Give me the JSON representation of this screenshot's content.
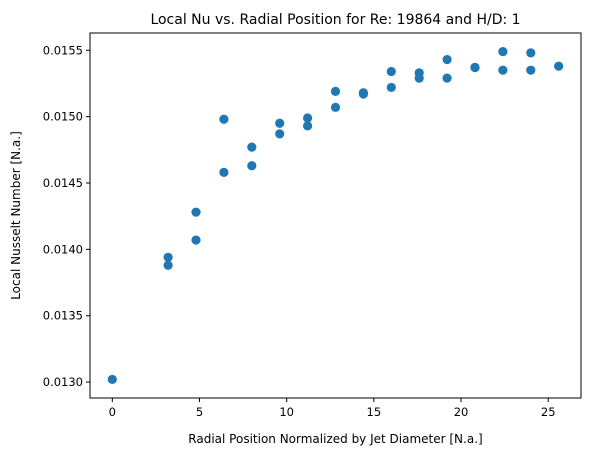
{
  "chart_data": {
    "type": "scatter",
    "title": "Local Nu vs. Radial Position for Re: 19864 and H/D: 1",
    "xlabel": "Radial Position Normalized by Jet Diameter [N.a.]",
    "ylabel": "Local Nusselt Number [N.a.]",
    "xlim": [
      -1.28,
      26.88
    ],
    "ylim": [
      0.01288,
      0.01563
    ],
    "xticks": [
      0,
      5,
      10,
      15,
      20,
      25
    ],
    "xtick_labels": [
      "0",
      "5",
      "10",
      "15",
      "20",
      "25"
    ],
    "yticks": [
      0.013,
      0.0135,
      0.014,
      0.0145,
      0.015,
      0.0155
    ],
    "ytick_labels": [
      "0.0130",
      "0.0135",
      "0.0140",
      "0.0145",
      "0.0150",
      "0.0155"
    ],
    "grid": false,
    "marker_color": "#1f77b4",
    "series": [
      {
        "x": [
          0,
          3.2,
          3.2,
          4.8,
          4.8,
          6.4,
          6.4,
          8.0,
          8.0,
          9.6,
          9.6,
          11.2,
          11.2,
          12.8,
          12.8,
          14.4,
          14.4,
          16.0,
          16.0,
          17.6,
          17.6,
          19.2,
          19.2,
          20.8,
          20.8,
          22.4,
          22.4,
          24.0,
          24.0,
          25.6
        ],
        "y": [
          0.01302,
          0.01394,
          0.01388,
          0.01428,
          0.01407,
          0.01498,
          0.01458,
          0.01477,
          0.01463,
          0.01495,
          0.01487,
          0.01499,
          0.01493,
          0.01519,
          0.01507,
          0.01518,
          0.01517,
          0.01534,
          0.01522,
          0.01533,
          0.01529,
          0.01543,
          0.01529,
          0.01537,
          0.01537,
          0.01549,
          0.01535,
          0.01548,
          0.01535,
          0.01538
        ]
      }
    ]
  }
}
